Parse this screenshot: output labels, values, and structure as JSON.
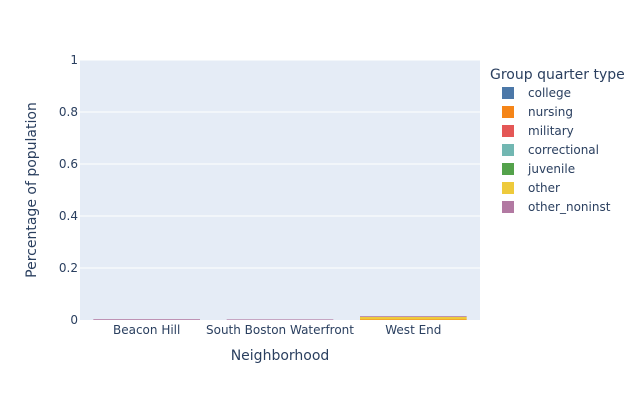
{
  "chart_data": {
    "type": "bar",
    "barmode": "stack",
    "categories": [
      "Beacon Hill",
      "South Boston Waterfront",
      "West End"
    ],
    "xlabel": "Neighborhood",
    "ylabel": "Percentage of population",
    "ylim": [
      0,
      1
    ],
    "yticks": [
      "0",
      "0.2",
      "0.4",
      "0.6",
      "0.8",
      "1"
    ],
    "grid": true,
    "legend_title": "Group quarter type",
    "legend_position": "right",
    "series": [
      {
        "name": "college",
        "color": "#4c78a8",
        "values": [
          0.0,
          0.0,
          0.0
        ]
      },
      {
        "name": "nursing",
        "color": "#f58518",
        "values": [
          0.0,
          0.0,
          0.002
        ]
      },
      {
        "name": "military",
        "color": "#e45756",
        "values": [
          0.0,
          0.0,
          0.0
        ]
      },
      {
        "name": "correctional",
        "color": "#72b7b2",
        "values": [
          0.0,
          0.0,
          0.0
        ]
      },
      {
        "name": "juvenile",
        "color": "#54a24b",
        "values": [
          0.0,
          0.0,
          0.0
        ]
      },
      {
        "name": "other",
        "color": "#eeca3b",
        "values": [
          0.0,
          0.0,
          0.01
        ]
      },
      {
        "name": "other_noninst",
        "color": "#b279a2",
        "values": [
          0.003,
          0.001,
          0.003
        ]
      }
    ]
  }
}
